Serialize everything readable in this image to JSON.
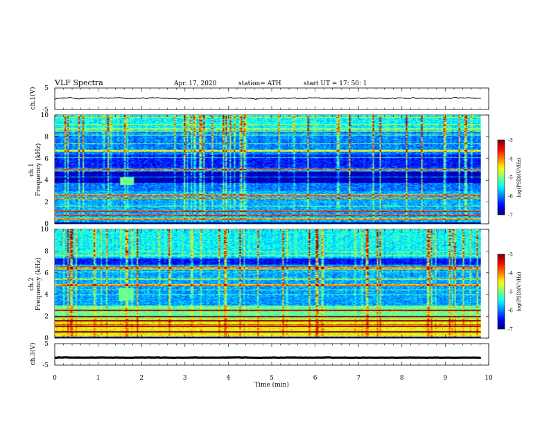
{
  "header": {
    "title": "VLF Spectra",
    "date": "Apr. 17, 2020",
    "station": "station= ATH",
    "start": "start  UT  =    17: 50: 1"
  },
  "chart_data": [
    {
      "type": "line",
      "name": "ch1-waveform",
      "ylabel": "ch.1(V)",
      "xlim": [
        0,
        10
      ],
      "ylim": [
        -5,
        5
      ],
      "yticks": [
        "5",
        "-5"
      ],
      "trace": {
        "color": "#000000",
        "mean": 0.2,
        "amplitude": 0.5
      }
    },
    {
      "type": "heatmap",
      "name": "ch1-spectrogram",
      "ylabel": "ch.1\nFrequency  (kHz)",
      "ylabel_lines": [
        "ch.1",
        "Frequency  (kHz)"
      ],
      "xlim": [
        0,
        10
      ],
      "data_xmax": 9.82,
      "ylim": [
        0,
        10
      ],
      "yticks": [
        "0",
        "2",
        "4",
        "6",
        "8",
        "10"
      ],
      "colorbar": {
        "label": "log(PSD)(V²/Hz)",
        "range": [
          -7,
          -3
        ],
        "ticks": [
          "-3",
          "-4",
          "-5",
          "-6",
          "-7"
        ]
      },
      "features": {
        "quiet_band_khz": [
          3.8,
          4.8
        ],
        "burst": {
          "t": [
            1.5,
            1.8
          ],
          "f_khz": [
            3.6,
            4.3
          ]
        },
        "strong_lines_khz": [
          0.5,
          0.8,
          1.2,
          2.4,
          2.7,
          5.0,
          6.7
        ]
      }
    },
    {
      "type": "heatmap",
      "name": "ch2-spectrogram",
      "ylabel": "ch.2\nFrequency  (kHz)",
      "ylabel_lines": [
        "ch.2",
        "Frequency  (kHz)"
      ],
      "xlim": [
        0,
        10
      ],
      "data_xmax": 9.82,
      "ylim": [
        0,
        10
      ],
      "yticks": [
        "0",
        "2",
        "4",
        "6",
        "8",
        "10"
      ],
      "colorbar": {
        "label": "log(PSD)(V²/Hz)",
        "range": [
          -7,
          -3
        ],
        "ticks": [
          "-3",
          "-4",
          "-5",
          "-6",
          "-7"
        ]
      },
      "features": {
        "burst": {
          "t": [
            1.45,
            1.8
          ],
          "f_khz": [
            3.5,
            4.6
          ]
        },
        "strong_lines_khz": [
          0.6,
          1.1,
          1.6,
          2.0,
          2.6,
          4.9,
          6.5
        ]
      }
    },
    {
      "type": "line",
      "name": "ch3-waveform",
      "ylabel": "ch.3(V)",
      "xlim": [
        0,
        10
      ],
      "ylim": [
        -5,
        5
      ],
      "yticks": [
        "5",
        "-5"
      ],
      "trace": {
        "color": "#000000",
        "mean": -1.5,
        "amplitude": 0.1
      }
    }
  ],
  "xaxis": {
    "label": "Time  (min)",
    "ticks": [
      0,
      1,
      2,
      3,
      4,
      5,
      6,
      7,
      8,
      9,
      10
    ]
  }
}
